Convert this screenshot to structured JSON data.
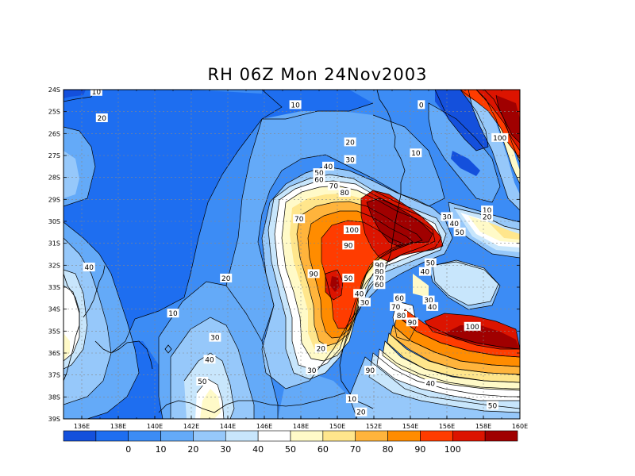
{
  "title": "RH 06Z Mon 24Nov2003",
  "map": {
    "variable": "RH",
    "lon_range": [
      135,
      160
    ],
    "lat_range": [
      -39,
      -24
    ],
    "x_ticks": [
      "136E",
      "138E",
      "140E",
      "142E",
      "144E",
      "146E",
      "148E",
      "150E",
      "152E",
      "154E",
      "156E",
      "158E",
      "160E"
    ],
    "y_ticks": [
      "24S",
      "25S",
      "26S",
      "27S",
      "28S",
      "29S",
      "30S",
      "31S",
      "32S",
      "33S",
      "34S",
      "35S",
      "36S",
      "37S",
      "38S",
      "39S"
    ],
    "gridlines": true,
    "colorbar": {
      "labels": [
        "0",
        "10",
        "20",
        "30",
        "40",
        "50",
        "60",
        "70",
        "80",
        "90",
        "100"
      ],
      "colors": [
        "#1450dc",
        "#1e6ef0",
        "#3c8cf5",
        "#64aaf8",
        "#96c8fa",
        "#c8e6fc",
        "#ffffff",
        "#fffac8",
        "#ffe68c",
        "#ffb43c",
        "#ff8c00",
        "#ff3c00",
        "#dc1400",
        "#a00000"
      ]
    },
    "contour_labels": [
      {
        "text": "10",
        "lon": 136.8,
        "lat": -24.1
      },
      {
        "text": "20",
        "lon": 137.1,
        "lat": -25.3
      },
      {
        "text": "10",
        "lon": 147.7,
        "lat": -24.7
      },
      {
        "text": "0",
        "lon": 154.6,
        "lat": -24.7
      },
      {
        "text": "100",
        "lon": 158.9,
        "lat": -26.2
      },
      {
        "text": "20",
        "lon": 150.7,
        "lat": -26.4
      },
      {
        "text": "10",
        "lon": 154.3,
        "lat": -26.9
      },
      {
        "text": "30",
        "lon": 150.7,
        "lat": -27.2
      },
      {
        "text": "40",
        "lon": 149.5,
        "lat": -27.5
      },
      {
        "text": "50",
        "lon": 149.0,
        "lat": -27.8
      },
      {
        "text": "60",
        "lon": 149.0,
        "lat": -28.1
      },
      {
        "text": "70",
        "lon": 149.8,
        "lat": -28.4
      },
      {
        "text": "80",
        "lon": 150.4,
        "lat": -28.7
      },
      {
        "text": "10",
        "lon": 158.2,
        "lat": -29.5
      },
      {
        "text": "20",
        "lon": 158.2,
        "lat": -29.8
      },
      {
        "text": "30",
        "lon": 156.0,
        "lat": -29.8
      },
      {
        "text": "40",
        "lon": 156.4,
        "lat": -30.1
      },
      {
        "text": "50",
        "lon": 156.7,
        "lat": -30.5
      },
      {
        "text": "70",
        "lon": 147.9,
        "lat": -29.9
      },
      {
        "text": "100",
        "lon": 150.8,
        "lat": -30.4
      },
      {
        "text": "90",
        "lon": 150.6,
        "lat": -31.1
      },
      {
        "text": "90",
        "lon": 152.3,
        "lat": -32.0
      },
      {
        "text": "80",
        "lon": 152.3,
        "lat": -32.3
      },
      {
        "text": "70",
        "lon": 152.3,
        "lat": -32.6
      },
      {
        "text": "60",
        "lon": 152.3,
        "lat": -32.9
      },
      {
        "text": "50",
        "lon": 155.1,
        "lat": -31.9
      },
      {
        "text": "40",
        "lon": 154.8,
        "lat": -32.3
      },
      {
        "text": "50",
        "lon": 150.6,
        "lat": -32.6
      },
      {
        "text": "90",
        "lon": 148.7,
        "lat": -32.4
      },
      {
        "text": "40",
        "lon": 136.4,
        "lat": -32.1
      },
      {
        "text": "20",
        "lon": 143.9,
        "lat": -32.6
      },
      {
        "text": "40",
        "lon": 151.2,
        "lat": -33.3
      },
      {
        "text": "30",
        "lon": 151.5,
        "lat": -33.7
      },
      {
        "text": "60",
        "lon": 153.4,
        "lat": -33.5
      },
      {
        "text": "70",
        "lon": 153.2,
        "lat": -33.9
      },
      {
        "text": "80",
        "lon": 153.5,
        "lat": -34.3
      },
      {
        "text": "90",
        "lon": 154.1,
        "lat": -34.6
      },
      {
        "text": "30",
        "lon": 155.0,
        "lat": -33.6
      },
      {
        "text": "40",
        "lon": 155.2,
        "lat": -33.9
      },
      {
        "text": "100",
        "lon": 157.4,
        "lat": -34.8
      },
      {
        "text": "10",
        "lon": 141.0,
        "lat": -34.2
      },
      {
        "text": "30",
        "lon": 143.3,
        "lat": -35.3
      },
      {
        "text": "20",
        "lon": 149.1,
        "lat": -35.8
      },
      {
        "text": "40",
        "lon": 143.0,
        "lat": -36.3
      },
      {
        "text": "30",
        "lon": 148.6,
        "lat": -36.8
      },
      {
        "text": "90",
        "lon": 151.8,
        "lat": -36.8
      },
      {
        "text": "50",
        "lon": 142.6,
        "lat": -37.3
      },
      {
        "text": "40",
        "lon": 155.1,
        "lat": -37.4
      },
      {
        "text": "10",
        "lon": 150.8,
        "lat": -38.1
      },
      {
        "text": "50",
        "lon": 158.5,
        "lat": -38.4
      },
      {
        "text": "20",
        "lon": 151.3,
        "lat": -38.7
      }
    ]
  }
}
